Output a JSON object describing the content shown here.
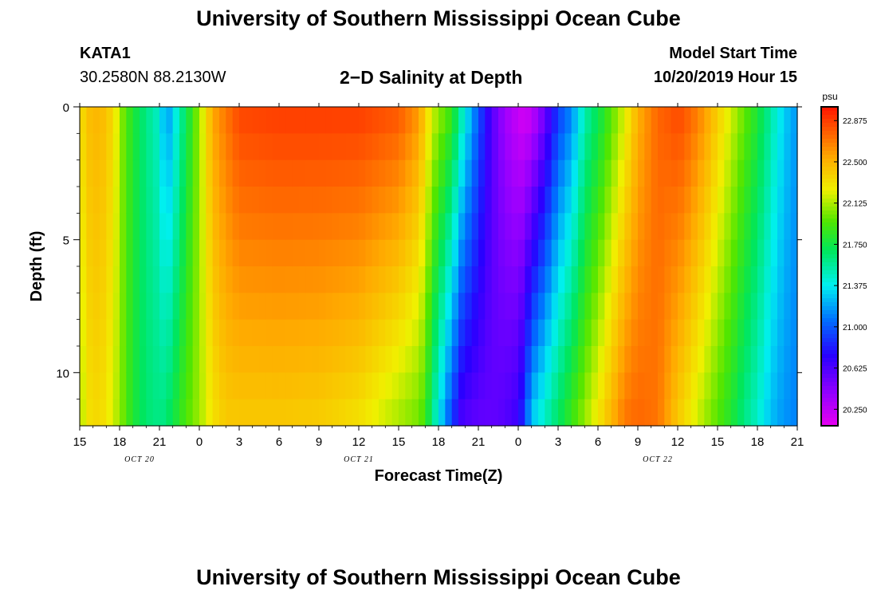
{
  "header": {
    "top_title": "University of Southern Mississippi Ocean Cube",
    "bottom_title": "University of Southern Mississippi Ocean Cube",
    "station_id": "KATA1",
    "station_coords": "30.2580N 88.2130W",
    "plot_title": "2−D Salinity at Depth",
    "model_start_label": "Model Start Time",
    "model_start_value": "10/20/2019 Hour 15"
  },
  "chart_data": {
    "type": "heatmap",
    "title": "2-D Salinity at Depth",
    "xlabel": "Forecast Time(Z)",
    "ylabel": "Depth (ft)",
    "units": "psu",
    "x_range_hours": [
      0,
      54
    ],
    "y_range_ft": [
      0,
      12
    ],
    "x_tick_labels": [
      "15",
      "18",
      "21",
      "0",
      "3",
      "6",
      "9",
      "12",
      "15",
      "18",
      "21",
      "0",
      "3",
      "6",
      "9",
      "12",
      "15",
      "18",
      "21"
    ],
    "y_tick_labels": [
      "0",
      "5",
      "10"
    ],
    "y_tick_values": [
      0,
      5,
      10
    ],
    "date_labels": [
      {
        "text": "OCT 20",
        "hour": 4.5
      },
      {
        "text": "OCT 21",
        "hour": 21
      },
      {
        "text": "OCT 22",
        "hour": 43.5
      }
    ],
    "colorbar": {
      "min": 20.1,
      "max": 23.0,
      "tick_values": [
        20.25,
        20.625,
        21.0,
        21.375,
        21.75,
        22.125,
        22.5,
        22.875
      ],
      "tick_labels": [
        "20.250",
        "20.625",
        "21.000",
        "21.375",
        "21.750",
        "22.125",
        "22.500",
        "22.875"
      ]
    },
    "time_profile": {
      "hours": [
        0,
        0.6,
        1.5,
        2.5,
        3.3,
        4,
        5,
        6,
        6.5,
        7,
        8,
        9,
        10,
        11,
        12,
        15,
        18,
        21,
        24,
        25.5,
        26,
        26.5,
        28,
        28.8,
        30,
        31,
        32,
        33,
        33.4,
        34,
        35,
        36,
        37,
        38,
        39,
        40,
        41,
        42,
        43.5,
        44.5,
        45,
        46,
        47,
        48,
        49,
        50,
        51,
        52,
        53,
        54
      ],
      "surface": [
        22.3,
        22.45,
        22.5,
        22.35,
        22.0,
        21.8,
        21.6,
        21.45,
        21.1,
        21.3,
        21.7,
        22.1,
        22.55,
        22.7,
        22.85,
        22.88,
        22.88,
        22.88,
        22.8,
        22.6,
        22.4,
        22.2,
        21.9,
        21.5,
        21.0,
        20.6,
        20.35,
        20.2,
        20.15,
        20.2,
        20.5,
        20.9,
        21.1,
        21.5,
        21.7,
        21.95,
        22.2,
        22.5,
        22.75,
        22.8,
        22.85,
        22.75,
        22.6,
        22.4,
        22.2,
        22.0,
        21.8,
        21.55,
        21.3,
        21.15
      ],
      "bottom": [
        22.1,
        22.3,
        22.35,
        22.2,
        22.0,
        21.8,
        21.65,
        21.6,
        21.65,
        21.75,
        21.95,
        22.1,
        22.3,
        22.4,
        22.4,
        22.4,
        22.38,
        22.3,
        22.1,
        22.0,
        21.9,
        21.6,
        20.9,
        20.6,
        20.55,
        20.55,
        20.6,
        20.7,
        20.9,
        21.3,
        21.5,
        21.7,
        21.9,
        22.1,
        22.3,
        22.5,
        22.7,
        22.75,
        22.7,
        22.5,
        22.4,
        22.25,
        22.1,
        21.95,
        21.8,
        21.6,
        21.45,
        21.25,
        21.15,
        21.1
      ]
    }
  }
}
